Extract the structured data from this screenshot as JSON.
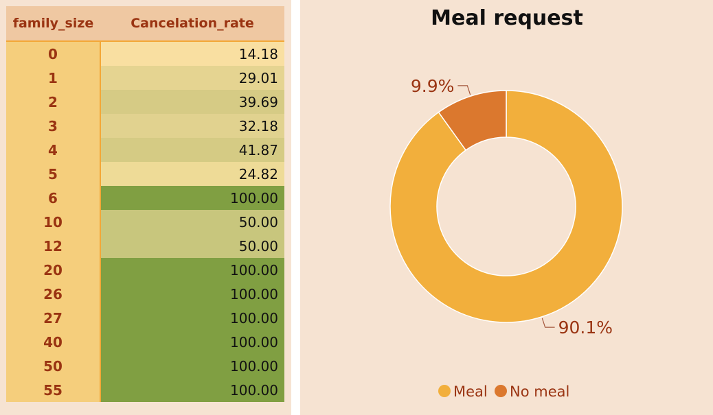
{
  "table": {
    "headers": [
      "family_size",
      "Cancelation_rate"
    ],
    "rows": [
      {
        "family_size": "0",
        "rate": "14.18",
        "color": "#f9dfa1"
      },
      {
        "family_size": "1",
        "rate": "29.01",
        "color": "#e5d491"
      },
      {
        "family_size": "2",
        "rate": "39.69",
        "color": "#d6cb85"
      },
      {
        "family_size": "3",
        "rate": "32.18",
        "color": "#e1d28f"
      },
      {
        "family_size": "4",
        "rate": "41.87",
        "color": "#d5cb84"
      },
      {
        "family_size": "5",
        "rate": "24.82",
        "color": "#eedb97"
      },
      {
        "family_size": "6",
        "rate": "100.00",
        "color": "#809f42"
      },
      {
        "family_size": "10",
        "rate": "50.00",
        "color": "#c8c67d"
      },
      {
        "family_size": "12",
        "rate": "50.00",
        "color": "#c8c67d"
      },
      {
        "family_size": "20",
        "rate": "100.00",
        "color": "#809f42"
      },
      {
        "family_size": "26",
        "rate": "100.00",
        "color": "#809f42"
      },
      {
        "family_size": "27",
        "rate": "100.00",
        "color": "#809f42"
      },
      {
        "family_size": "40",
        "rate": "100.00",
        "color": "#809f42"
      },
      {
        "family_size": "50",
        "rate": "100.00",
        "color": "#809f42"
      },
      {
        "family_size": "55",
        "rate": "100.00",
        "color": "#809f42"
      }
    ]
  },
  "chart_data": {
    "type": "pie",
    "title": "Meal request",
    "donut": true,
    "slices": [
      {
        "label": "Meal",
        "value": 90.1,
        "text": "90.1%",
        "color": "#f2af3c"
      },
      {
        "label": "No meal",
        "value": 9.9,
        "text": "9.9%",
        "color": "#db782e"
      }
    ],
    "legend": "bottom"
  }
}
